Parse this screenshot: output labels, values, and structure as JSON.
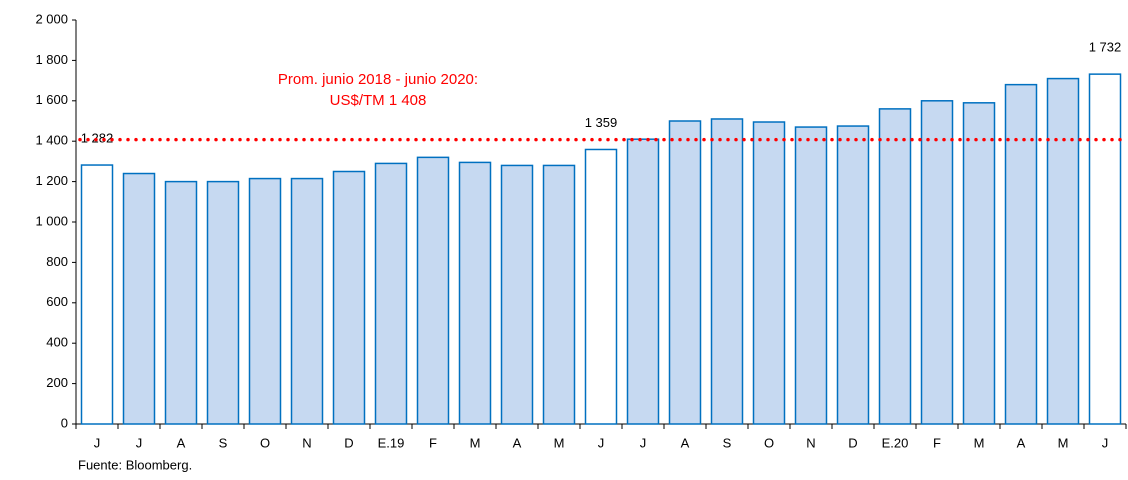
{
  "chart_data": {
    "type": "bar",
    "categories": [
      "J",
      "J",
      "A",
      "S",
      "O",
      "N",
      "D",
      "E.19",
      "F",
      "M",
      "A",
      "M",
      "J",
      "J",
      "A",
      "S",
      "O",
      "N",
      "D",
      "E.20",
      "F",
      "M",
      "A",
      "M",
      "J"
    ],
    "values": [
      1282,
      1240,
      1200,
      1200,
      1215,
      1215,
      1250,
      1290,
      1320,
      1295,
      1280,
      1280,
      1359,
      1410,
      1500,
      1510,
      1495,
      1470,
      1475,
      1560,
      1600,
      1590,
      1680,
      1710,
      1732
    ],
    "value_labels": [
      "1 282",
      null,
      null,
      null,
      null,
      null,
      null,
      null,
      null,
      null,
      null,
      null,
      "1 359",
      null,
      null,
      null,
      null,
      null,
      null,
      null,
      null,
      null,
      null,
      null,
      "1 732"
    ],
    "colors": [
      "#ffffff",
      "#c6d9f1",
      "#c6d9f1",
      "#c6d9f1",
      "#c6d9f1",
      "#c6d9f1",
      "#c6d9f1",
      "#c6d9f1",
      "#c6d9f1",
      "#c6d9f1",
      "#c6d9f1",
      "#c6d9f1",
      "#ffffff",
      "#c6d9f1",
      "#c6d9f1",
      "#c6d9f1",
      "#c6d9f1",
      "#c6d9f1",
      "#c6d9f1",
      "#c6d9f1",
      "#c6d9f1",
      "#c6d9f1",
      "#c6d9f1",
      "#c6d9f1",
      "#ffffff"
    ],
    "edge_color": "#0070c0",
    "ylim": [
      0,
      2000
    ],
    "yticks": [
      0,
      200,
      400,
      600,
      800,
      {
        "value": 1000,
        "label": "1 000"
      },
      {
        "value": 1200,
        "label": "1 200"
      },
      {
        "value": 1400,
        "label": "1 400"
      },
      {
        "value": 1600,
        "label": "1 600"
      },
      {
        "value": 1800,
        "label": "1 800"
      },
      {
        "value": 2000,
        "label": "2 000"
      }
    ],
    "reference_line": {
      "value": 1408,
      "color": "#ff0000",
      "style": "dotted"
    },
    "annotation": [
      "Prom. junio 2018 - junio 2020:",
      "US$/TM 1 408"
    ],
    "source": "Fuente: Bloomberg."
  }
}
